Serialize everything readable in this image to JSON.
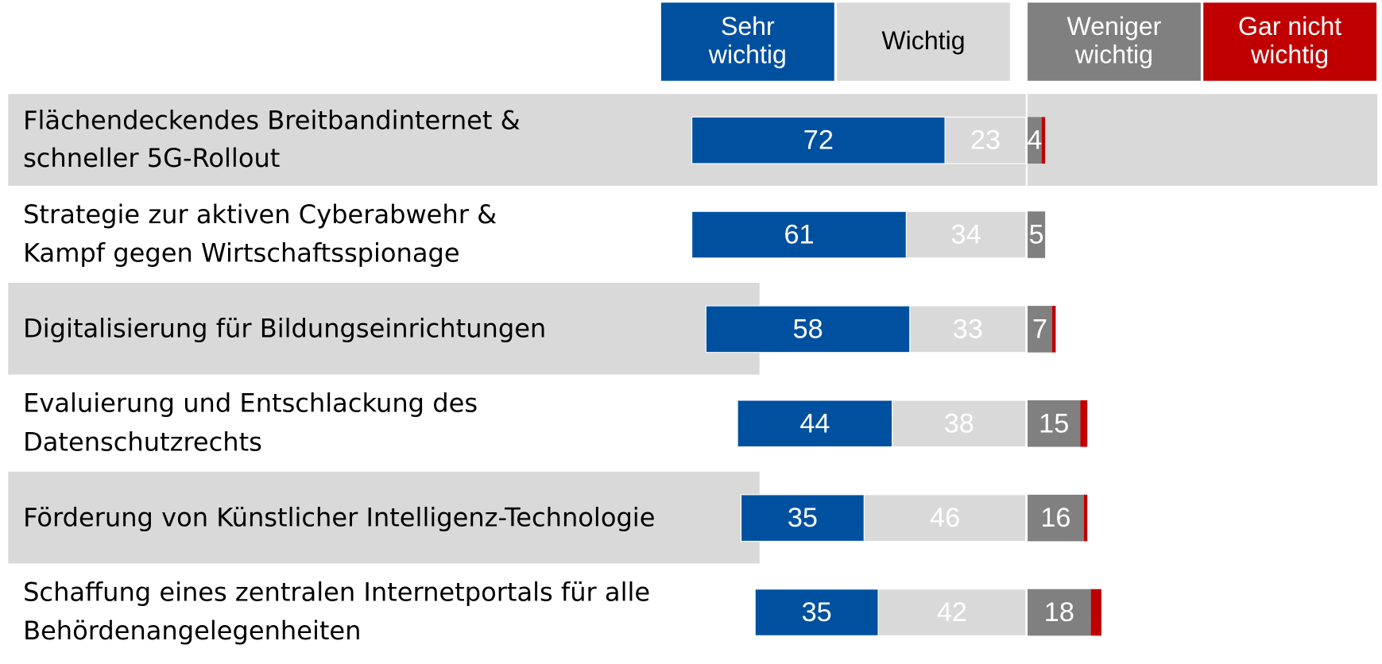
{
  "chart_data": {
    "type": "diverging_bar",
    "categories": [
      "Flächendeckendes Breitbandinternet &\nschneller 5G-Rollout",
      "Strategie zur aktiven Cyberabwehr &\nKampf gegen Wirtschaftsspionage",
      "Digitalisierung für Bildungseinrichtungen",
      "Evaluierung und Entschlackung des\nDatenschutzrechts",
      "Förderung von Künstlicher Intelligenz-Technologie",
      "Schaffung eines zentralen Internetportals für alle\nBehördenangelegenheiten"
    ],
    "series": [
      {
        "name": "Sehr wichtig",
        "color": "#0050a0",
        "values": [
          72,
          61,
          58,
          44,
          35,
          35
        ]
      },
      {
        "name": "Wichtig",
        "color": "#d9d9d9",
        "values": [
          23,
          34,
          33,
          38,
          46,
          42
        ]
      },
      {
        "name": "Weniger wichtig",
        "color": "#808080",
        "values": [
          4,
          5,
          7,
          15,
          16,
          18
        ]
      },
      {
        "name": "Gar nicht wichtig",
        "color": "#c00000",
        "values": [
          1,
          0,
          1,
          2,
          1,
          3
        ]
      }
    ]
  }
}
